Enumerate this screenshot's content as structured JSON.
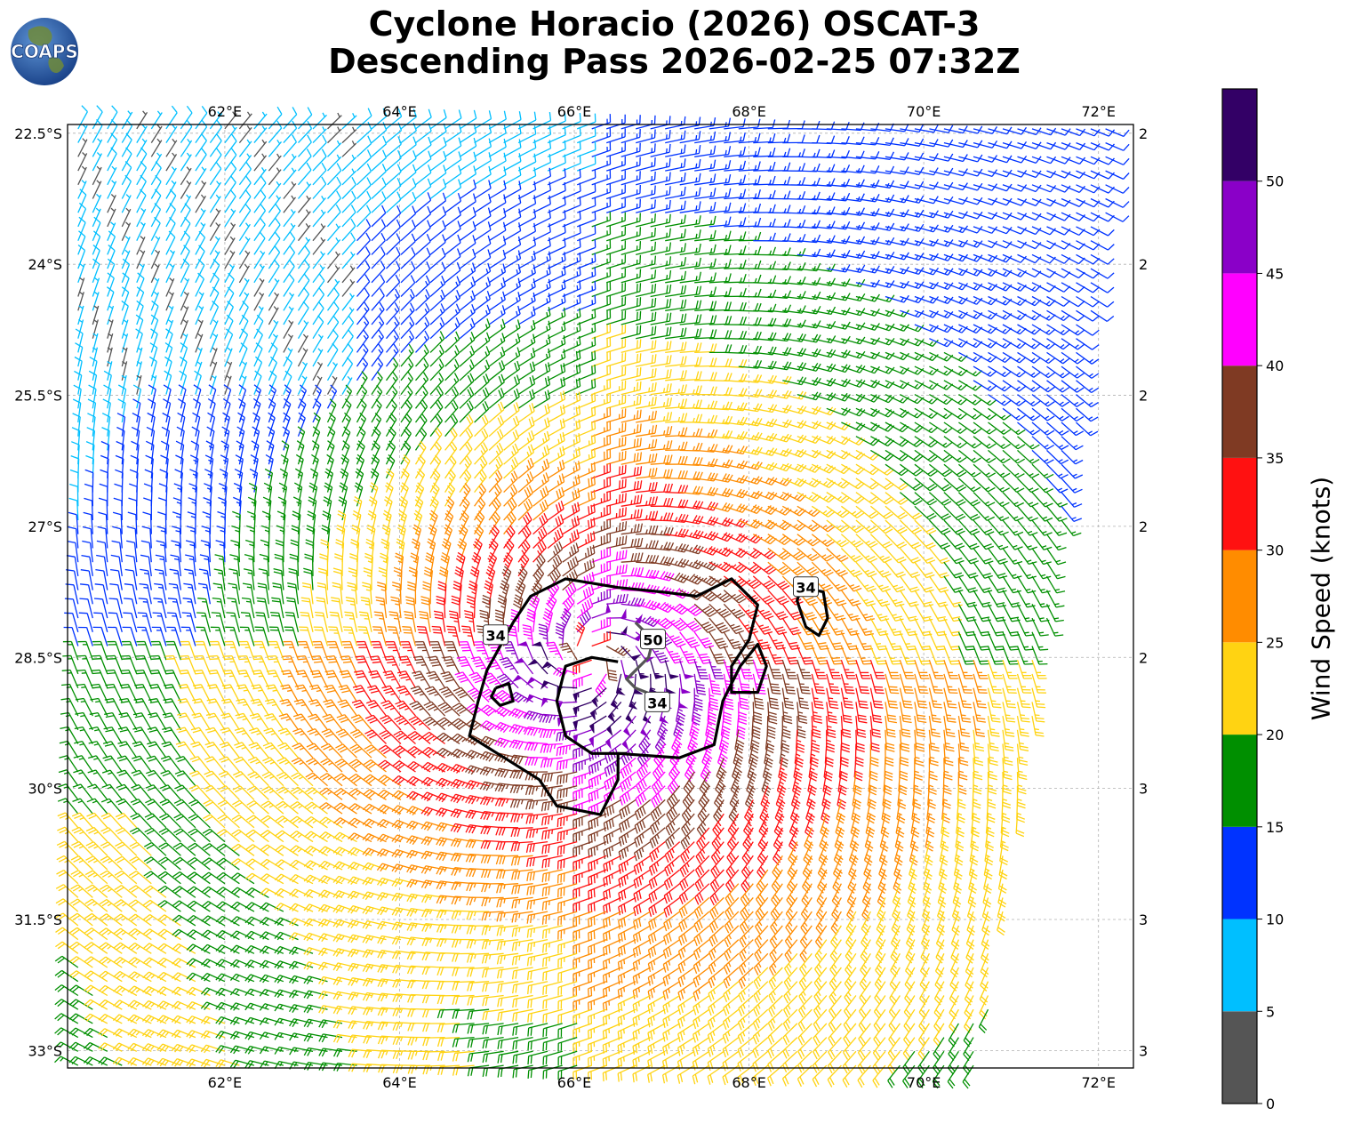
{
  "header": {
    "title_line1": "Cyclone Horacio (2026) OSCAT-3",
    "title_line2": "Descending Pass 2026-02-25 07:32Z",
    "logo_text": "COAPS"
  },
  "map": {
    "lon_range": [
      60.2,
      72.4
    ],
    "lat_range": [
      -33.2,
      -22.4
    ],
    "lon_ticks": [
      62,
      64,
      66,
      68,
      70,
      72
    ],
    "lat_ticks": [
      -22.5,
      -24,
      -25.5,
      -27,
      -28.5,
      -30,
      -31.5,
      -33
    ],
    "lon_tick_labels": [
      "62°E",
      "64°E",
      "66°E",
      "68°E",
      "70°E",
      "72°E"
    ],
    "lat_tick_labels": [
      "22.5°S",
      "24°S",
      "25.5°S",
      "27°S",
      "28.5°S",
      "30°S",
      "31.5°S",
      "33°S"
    ],
    "gridlines": true,
    "storm_center": {
      "lon": 66.2,
      "lat": -28.5
    },
    "contour_labels": [
      {
        "text": "34",
        "lon": 65.1,
        "lat": -28.25
      },
      {
        "text": "34",
        "lon": 68.65,
        "lat": -27.7
      },
      {
        "text": "50",
        "lon": 66.9,
        "lat": -28.3
      },
      {
        "text": "34",
        "lon": 66.95,
        "lat": -29.02
      }
    ],
    "contour_34_main": [
      [
        65.3,
        -28.1
      ],
      [
        65.5,
        -27.8
      ],
      [
        65.9,
        -27.6
      ],
      [
        66.5,
        -27.7
      ],
      [
        67.0,
        -27.75
      ],
      [
        67.4,
        -27.8
      ],
      [
        67.8,
        -27.6
      ],
      [
        68.1,
        -27.9
      ],
      [
        68.0,
        -28.3
      ],
      [
        67.8,
        -28.6
      ],
      [
        67.8,
        -28.9
      ],
      [
        68.1,
        -28.9
      ],
      [
        68.2,
        -28.6
      ],
      [
        68.1,
        -28.35
      ],
      [
        67.9,
        -28.6
      ],
      [
        67.7,
        -29.0
      ],
      [
        67.6,
        -29.5
      ],
      [
        67.2,
        -29.65
      ],
      [
        66.5,
        -29.6
      ],
      [
        66.5,
        -29.9
      ],
      [
        66.3,
        -30.3
      ],
      [
        65.8,
        -30.2
      ],
      [
        65.6,
        -29.9
      ],
      [
        65.2,
        -29.65
      ],
      [
        64.8,
        -29.4
      ],
      [
        64.9,
        -29.0
      ],
      [
        65.0,
        -28.65
      ],
      [
        65.3,
        -28.1
      ]
    ],
    "contour_34_inner": [
      [
        66.5,
        -28.55
      ],
      [
        66.2,
        -28.5
      ],
      [
        65.9,
        -28.6
      ],
      [
        65.8,
        -29.0
      ],
      [
        65.9,
        -29.4
      ],
      [
        66.2,
        -29.6
      ],
      [
        66.6,
        -29.6
      ]
    ],
    "contour_34_isle": [
      [
        65.1,
        -28.85
      ],
      [
        65.25,
        -28.8
      ],
      [
        65.3,
        -29.0
      ],
      [
        65.15,
        -29.05
      ],
      [
        65.05,
        -28.95
      ],
      [
        65.1,
        -28.85
      ]
    ],
    "contour_34_east": [
      [
        68.6,
        -27.7
      ],
      [
        68.85,
        -27.75
      ],
      [
        68.9,
        -28.05
      ],
      [
        68.8,
        -28.25
      ],
      [
        68.65,
        -28.15
      ],
      [
        68.55,
        -27.85
      ],
      [
        68.6,
        -27.7
      ]
    ],
    "contour_50": [
      [
        66.7,
        -28.1
      ],
      [
        66.9,
        -28.3
      ],
      [
        66.85,
        -28.5
      ],
      [
        66.6,
        -28.75
      ],
      [
        66.7,
        -28.85
      ],
      [
        66.95,
        -28.95
      ]
    ]
  },
  "colorbar": {
    "label": "Wind Speed (knots)",
    "ticks": [
      0,
      5,
      10,
      15,
      20,
      25,
      30,
      35,
      40,
      45,
      50
    ],
    "tick_labels": [
      "0",
      "5",
      "10",
      "15",
      "20",
      "25",
      "30",
      "35",
      "40",
      "45",
      "50"
    ],
    "colors": [
      "#555555",
      "#00bfff",
      "#0033ff",
      "#008f00",
      "#ffd312",
      "#ff8c00",
      "#ff1111",
      "#7f3a23",
      "#ff00ff",
      "#8a00c8",
      "#330066"
    ]
  }
}
